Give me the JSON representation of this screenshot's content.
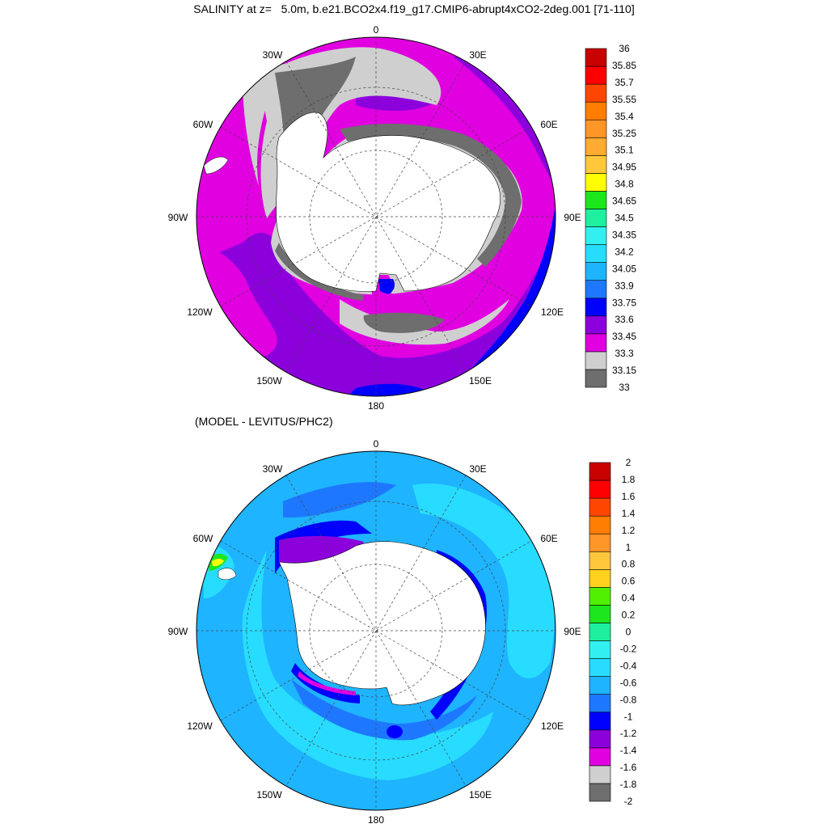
{
  "title": "SALINITY at z=   5.0m, b.e21.BCO2x4.f19_g17.CMIP6-abrupt4xCO2-2deg.001 [71-110]",
  "subtitle": "(MODEL - LEVITUS/PHC2)",
  "longitude_labels": {
    "deg0": "0",
    "e30": "30E",
    "e60": "60E",
    "e90": "90E",
    "e120": "120E",
    "e150": "150E",
    "deg180": "180",
    "w150": "150W",
    "w120": "120W",
    "w90": "90W",
    "w60": "60W",
    "w30": "30W"
  },
  "colors": {
    "salinity": [
      "#6e6e6e",
      "#cfcfcf",
      "#e000e0",
      "#8c00dc",
      "#0000ff",
      "#1e78ff",
      "#1eb4ff",
      "#28dcff",
      "#32f0f0",
      "#1ef0a0",
      "#1ee61e",
      "#ffff00",
      "#ffc83c",
      "#ffaa32",
      "#ff9628",
      "#ff7d00",
      "#ff4600",
      "#ff0000",
      "#c80000"
    ],
    "anomaly": [
      "#6e6e6e",
      "#cfcfcf",
      "#e000e0",
      "#8c00dc",
      "#0000ff",
      "#1e78ff",
      "#1eb4ff",
      "#28dcff",
      "#32f0f0",
      "#1ef0a0",
      "#1ee61e",
      "#50f000",
      "#ffd21e",
      "#ffc83c",
      "#ff9628",
      "#ff7d00",
      "#ff4600",
      "#ff0000",
      "#c80000"
    ],
    "land": "#ffffff"
  },
  "salinity_levels": [
    "36",
    "35.85",
    "35.7",
    "35.55",
    "35.4",
    "35.25",
    "35.1",
    "34.95",
    "34.8",
    "34.65",
    "34.5",
    "34.35",
    "34.2",
    "34.05",
    "33.9",
    "33.75",
    "33.6",
    "33.45",
    "33.3",
    "33.15",
    "33"
  ],
  "anomaly_levels": [
    "2",
    "1.8",
    "1.6",
    "1.4",
    "1.2",
    "1",
    "0.8",
    "0.6",
    "0.4",
    "0.2",
    "0",
    "-0.2",
    "-0.4",
    "-0.6",
    "-0.8",
    "-1",
    "-1.2",
    "-1.4",
    "-1.6",
    "-1.8",
    "-2"
  ]
}
